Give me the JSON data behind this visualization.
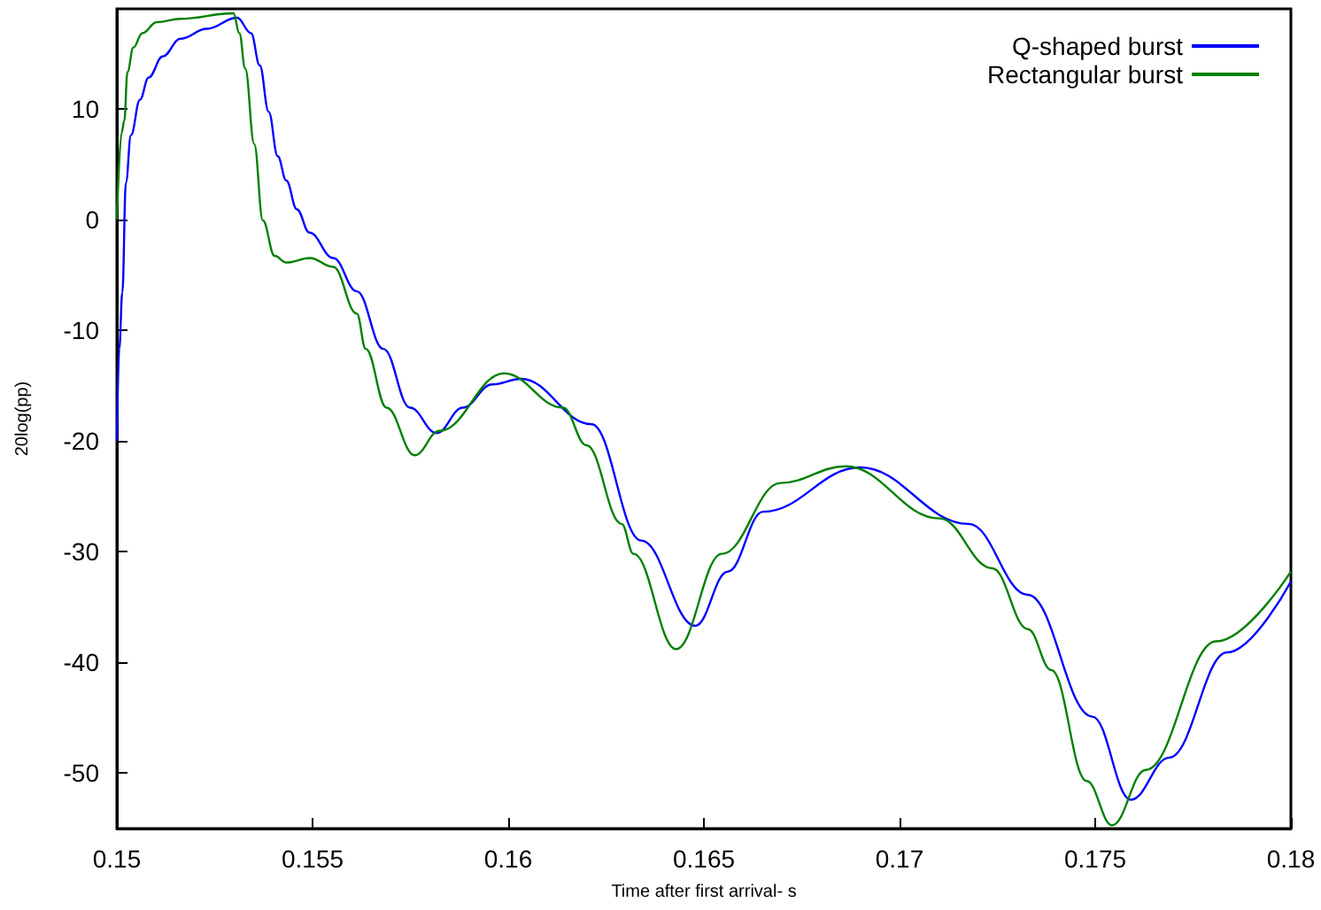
{
  "chart_data": {
    "type": "line",
    "xlabel": "Time after first arrival- s",
    "ylabel": "20log(pp)",
    "xlim": [
      0.15,
      0.18
    ],
    "xticks": [
      0.15,
      0.155,
      0.16,
      0.165,
      0.17,
      0.175,
      0.18
    ],
    "ylim": [
      -55,
      19
    ],
    "yticks": [
      -50,
      -40,
      -30,
      -20,
      -10,
      0,
      10
    ],
    "grid": false,
    "legend": "top right",
    "marker": "none",
    "line_style": "solid",
    "series": [
      {
        "name": "Q-shaped burst",
        "color": "#0000ff",
        "x": [
          0.15,
          0.15006,
          0.15014,
          0.15023,
          0.15036,
          0.15059,
          0.15081,
          0.15117,
          0.15162,
          0.1523,
          0.15307,
          0.15343,
          0.15365,
          0.15388,
          0.15411,
          0.15433,
          0.1546,
          0.15492,
          0.15553,
          0.15613,
          0.15681,
          0.15749,
          0.15817,
          0.15884,
          0.15959,
          0.16033,
          0.16213,
          0.1634,
          0.16478,
          0.16561,
          0.16651,
          0.16899,
          0.17177,
          0.17328,
          0.17493,
          0.17591,
          0.17689,
          0.17837,
          0.18
        ],
        "values": [
          -20,
          -11.7,
          -6.6,
          3.3,
          7.6,
          10.8,
          12.8,
          14.7,
          16.3,
          17.2,
          18.2,
          16.8,
          13.9,
          9.7,
          5.7,
          3.5,
          0.9,
          -1.2,
          -3.5,
          -6.5,
          -11.7,
          -17,
          -19.3,
          -17,
          -14.9,
          -14.4,
          -18.5,
          -29,
          -36.7,
          -31.8,
          -26.4,
          -22.4,
          -27.5,
          -33.9,
          -44.9,
          -52.4,
          -48.6,
          -39.1,
          -32.7
        ]
      },
      {
        "name": "Rectangular burst",
        "color": "#008000",
        "x": [
          0.15,
          0.15012,
          0.15019,
          0.15027,
          0.15042,
          0.15065,
          0.15102,
          0.15162,
          0.15298,
          0.15313,
          0.15328,
          0.15351,
          0.15373,
          0.15403,
          0.15433,
          0.15493,
          0.15553,
          0.15613,
          0.15636,
          0.15689,
          0.15761,
          0.15824,
          0.15989,
          0.1614,
          0.162,
          0.1629,
          0.1632,
          0.16429,
          0.16546,
          0.16696,
          0.16862,
          0.17102,
          0.17237,
          0.17328,
          0.17388,
          0.17478,
          0.17543,
          0.17629,
          0.17809,
          0.18
        ],
        "values": [
          0,
          7.8,
          8.9,
          13.3,
          15.5,
          16.8,
          17.8,
          18.1,
          18.6,
          16.8,
          13.6,
          6.8,
          -0.1,
          -3.3,
          -3.9,
          -3.5,
          -4.3,
          -8.5,
          -11.7,
          -17,
          -21.3,
          -19.1,
          -13.9,
          -17,
          -20.4,
          -27.5,
          -30.2,
          -38.8,
          -30.2,
          -23.8,
          -22.3,
          -27,
          -31.5,
          -37,
          -40.7,
          -50.7,
          -54.7,
          -49.7,
          -38.1,
          -31.8
        ]
      }
    ]
  }
}
